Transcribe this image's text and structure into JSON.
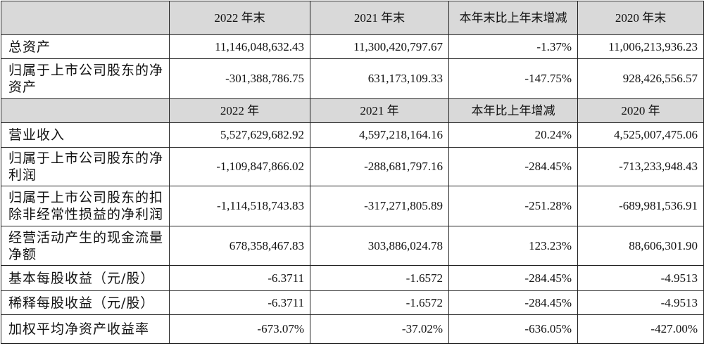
{
  "table": {
    "sections": [
      {
        "header": [
          "2022 年末",
          "2021 年末",
          "本年末比上年末增减",
          "2020 年末"
        ],
        "rows": [
          [
            "总资产",
            "11,146,048,632.43",
            "11,300,420,797.67",
            "-1.37%",
            "11,006,213,936.23"
          ],
          [
            "归属于上市公司股东的净资产",
            "-301,388,786.75",
            "631,173,109.33",
            "-147.75%",
            "928,426,556.57"
          ]
        ]
      },
      {
        "header": [
          "2022 年",
          "2021 年",
          "本年比上年增减",
          "2020 年"
        ],
        "rows": [
          [
            "营业收入",
            "5,527,629,682.92",
            "4,597,218,164.16",
            "20.24%",
            "4,525,007,475.06"
          ],
          [
            "归属于上市公司股东的净利润",
            "-1,109,847,866.02",
            "-288,681,797.16",
            "-284.45%",
            "-713,233,948.43"
          ],
          [
            "归属于上市公司股东的扣除非经常性损益的净利润",
            "-1,114,518,743.83",
            "-317,271,805.89",
            "-251.28%",
            "-689,981,536.91"
          ],
          [
            "经营活动产生的现金流量净额",
            "678,358,467.83",
            "303,886,024.78",
            "123.23%",
            "88,606,301.90"
          ],
          [
            "基本每股收益（元/股）",
            "-6.3711",
            "-1.6572",
            "-284.45%",
            "-4.9513"
          ],
          [
            "稀释每股收益（元/股）",
            "-6.3711",
            "-1.6572",
            "-284.45%",
            "-4.9513"
          ],
          [
            "加权平均净资产收益率",
            "-673.07%",
            "-37.02%",
            "-636.05%",
            "-427.00%"
          ]
        ]
      }
    ]
  }
}
